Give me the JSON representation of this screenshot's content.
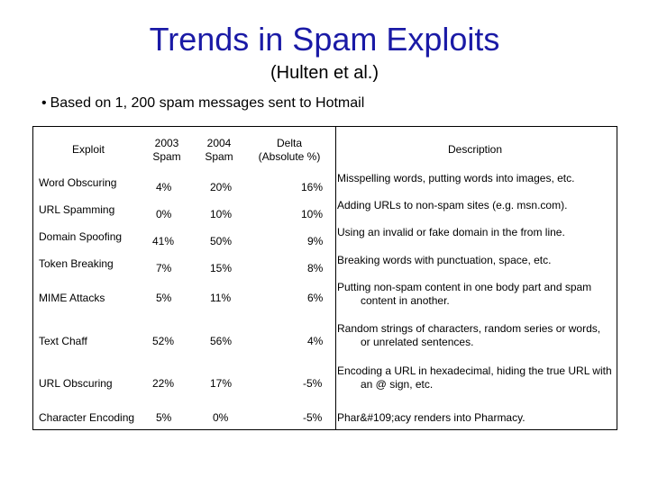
{
  "title": "Trends in Spam Exploits",
  "subtitle": "(Hulten et al.)",
  "bullet": "Based on 1, 200 spam messages sent to Hotmail",
  "table": {
    "headers": {
      "exploit": "Exploit",
      "y2003": "2003 Spam",
      "y2004": "2004 Spam",
      "delta": "Delta (Absolute %)",
      "description": "Description"
    },
    "rows": [
      {
        "exploit": "Word Obscuring",
        "y2003": "4%",
        "y2004": "20%",
        "delta": "16%",
        "desc1": "Misspelling words, putting words into images, etc.",
        "desc2": ""
      },
      {
        "exploit": "URL Spamming",
        "y2003": "0%",
        "y2004": "10%",
        "delta": "10%",
        "desc1": "Adding URLs to non-spam sites (e.g. msn.com).",
        "desc2": ""
      },
      {
        "exploit": "Domain Spoofing",
        "y2003": "41%",
        "y2004": "50%",
        "delta": "9%",
        "desc1": "Using an invalid or fake domain in the from line.",
        "desc2": ""
      },
      {
        "exploit": "Token Breaking",
        "y2003": "7%",
        "y2004": "15%",
        "delta": "8%",
        "desc1": "Breaking words with punctuation, space, etc.",
        "desc2": ""
      },
      {
        "exploit": "MIME Attacks",
        "y2003": "5%",
        "y2004": "11%",
        "delta": "6%",
        "desc1": "Putting non-spam content in one body part and spam",
        "desc2": "content in another."
      },
      {
        "exploit": "Text Chaff",
        "y2003": "52%",
        "y2004": "56%",
        "delta": "4%",
        "desc1": "Random strings of characters, random series or words,",
        "desc2": "or unrelated sentences."
      },
      {
        "exploit": "URL Obscuring",
        "y2003": "22%",
        "y2004": "17%",
        "delta": "-5%",
        "desc1": "Encoding a URL in hexadecimal, hiding the true URL with",
        "desc2": "an @ sign, etc."
      },
      {
        "exploit": "Character Encoding",
        "y2003": "5%",
        "y2004": "0%",
        "delta": "-5%",
        "desc1": "Phar&#109;acy renders into Pharmacy.",
        "desc2": ""
      }
    ]
  }
}
